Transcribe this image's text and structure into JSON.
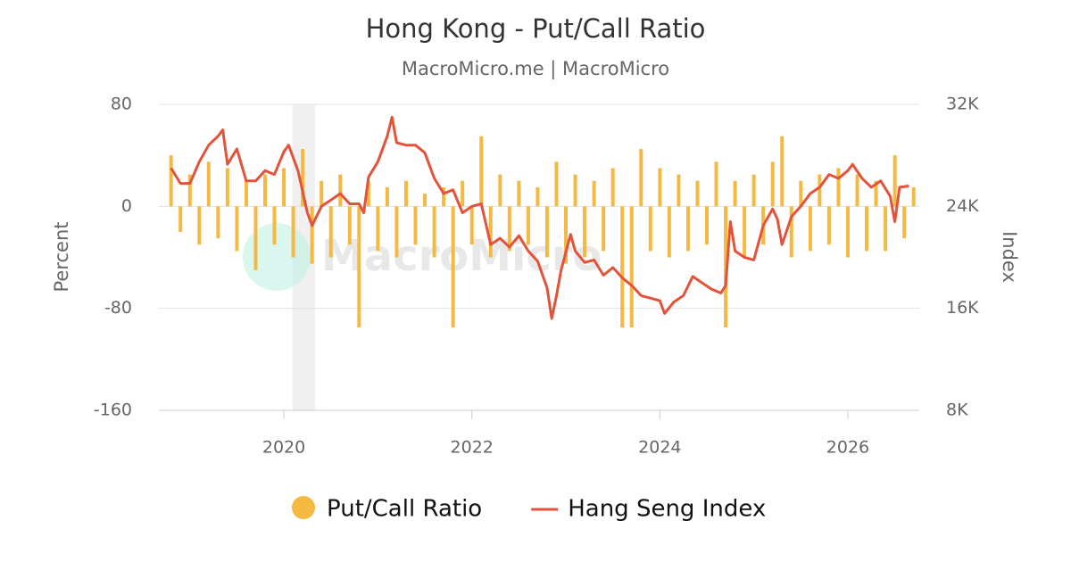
{
  "chart_data": {
    "type": "bar-line",
    "title": "Hong Kong - Put/Call Ratio",
    "subtitle": "MacroMicro.me | MacroMicro",
    "watermark": "MacroMicro",
    "y_label": "Percent",
    "y2_label": "Index",
    "xlim": [
      2018.67,
      2026.76
    ],
    "xticks": [
      2020,
      2022,
      2024,
      2026
    ],
    "ylim": [
      -160,
      80
    ],
    "yticks": [
      80,
      0,
      -80,
      -160
    ],
    "y2lim": [
      8000,
      32000
    ],
    "y2ticks": [
      {
        "value": 32000,
        "label": "32K"
      },
      {
        "value": 24000,
        "label": "24K"
      },
      {
        "value": 16000,
        "label": "16K"
      },
      {
        "value": 8000,
        "label": "8K"
      }
    ],
    "grid": true,
    "shaded_regions": [
      [
        2020.09,
        2020.33
      ]
    ],
    "series": [
      {
        "name": "Put/Call Ratio",
        "type": "bar",
        "color": "#f5b942",
        "x": [
          2018.8,
          2018.9,
          2019.0,
          2019.1,
          2019.2,
          2019.3,
          2019.4,
          2019.5,
          2019.6,
          2019.7,
          2019.8,
          2019.9,
          2020.0,
          2020.1,
          2020.2,
          2020.3,
          2020.4,
          2020.5,
          2020.6,
          2020.7,
          2020.8,
          2020.9,
          2021.0,
          2021.1,
          2021.2,
          2021.3,
          2021.4,
          2021.5,
          2021.6,
          2021.7,
          2021.8,
          2021.9,
          2022.0,
          2022.1,
          2022.2,
          2022.3,
          2022.4,
          2022.5,
          2022.6,
          2022.7,
          2022.8,
          2022.9,
          2023.0,
          2023.1,
          2023.2,
          2023.3,
          2023.4,
          2023.5,
          2023.6,
          2023.7,
          2023.8,
          2023.9,
          2024.0,
          2024.1,
          2024.2,
          2024.3,
          2024.4,
          2024.5,
          2024.6,
          2024.7,
          2024.8,
          2024.9,
          2025.0,
          2025.1,
          2025.2,
          2025.3,
          2025.4,
          2025.5,
          2025.6,
          2025.7,
          2025.8,
          2025.9,
          2026.0,
          2026.1,
          2026.2,
          2026.3,
          2026.4,
          2026.5,
          2026.6,
          2026.7
        ],
        "values": [
          40,
          -20,
          25,
          -30,
          35,
          -25,
          30,
          -35,
          20,
          -50,
          25,
          -30,
          30,
          -40,
          45,
          -45,
          20,
          -40,
          25,
          -30,
          -95,
          20,
          -35,
          15,
          -40,
          20,
          -30,
          10,
          -40,
          15,
          -95,
          20,
          -30,
          55,
          -40,
          25,
          -35,
          20,
          -30,
          15,
          -40,
          35,
          -45,
          25,
          -40,
          20,
          -35,
          30,
          -95,
          -95,
          45,
          -35,
          30,
          -40,
          25,
          -35,
          20,
          -30,
          35,
          -95,
          20,
          -40,
          25,
          -30,
          35,
          55,
          -40,
          20,
          -35,
          25,
          -30,
          30,
          -40,
          25,
          -35,
          20,
          -35,
          40,
          -25,
          15
        ]
      },
      {
        "name": "Hang Seng Index",
        "type": "line",
        "axis": "y2",
        "color": "#e2533a",
        "x": [
          2018.8,
          2018.9,
          2019.0,
          2019.1,
          2019.2,
          2019.3,
          2019.35,
          2019.4,
          2019.5,
          2019.6,
          2019.7,
          2019.8,
          2019.9,
          2020.0,
          2020.05,
          2020.15,
          2020.25,
          2020.3,
          2020.4,
          2020.5,
          2020.6,
          2020.7,
          2020.8,
          2020.85,
          2020.9,
          2021.0,
          2021.1,
          2021.15,
          2021.2,
          2021.3,
          2021.4,
          2021.5,
          2021.6,
          2021.7,
          2021.8,
          2021.9,
          2022.0,
          2022.1,
          2022.2,
          2022.3,
          2022.4,
          2022.5,
          2022.6,
          2022.7,
          2022.8,
          2022.85,
          2022.9,
          2022.95,
          2023.05,
          2023.1,
          2023.2,
          2023.3,
          2023.4,
          2023.5,
          2023.6,
          2023.7,
          2023.8,
          2023.9,
          2024.0,
          2024.05,
          2024.15,
          2024.25,
          2024.35,
          2024.45,
          2024.55,
          2024.65,
          2024.7,
          2024.75,
          2024.8,
          2024.9,
          2025.0,
          2025.1,
          2025.2,
          2025.25,
          2025.3,
          2025.4,
          2025.5,
          2025.6,
          2025.7,
          2025.8,
          2025.9,
          2026.0,
          2026.05,
          2026.15,
          2026.25,
          2026.35,
          2026.45,
          2026.5,
          2026.55,
          2026.65
        ],
        "values": [
          27000,
          25800,
          25800,
          27500,
          28800,
          29500,
          30000,
          27300,
          28500,
          26000,
          26000,
          26800,
          26500,
          28300,
          28800,
          26800,
          23500,
          22500,
          24000,
          24500,
          25000,
          24200,
          24200,
          23500,
          26300,
          27500,
          29500,
          31000,
          29000,
          28800,
          28800,
          28200,
          26200,
          25000,
          25300,
          23500,
          24000,
          24200,
          21000,
          21500,
          20800,
          21700,
          20500,
          19700,
          17600,
          15200,
          17000,
          19000,
          21800,
          20500,
          19600,
          19800,
          18600,
          19200,
          18400,
          17800,
          17000,
          16800,
          16600,
          15600,
          16500,
          17000,
          18500,
          18000,
          17500,
          17200,
          17800,
          22800,
          20500,
          20000,
          19800,
          22500,
          23800,
          23000,
          21000,
          23200,
          24000,
          25000,
          25500,
          26500,
          26200,
          26800,
          27300,
          26200,
          25500,
          26000,
          24800,
          22800,
          25500,
          25600
        ]
      }
    ]
  }
}
